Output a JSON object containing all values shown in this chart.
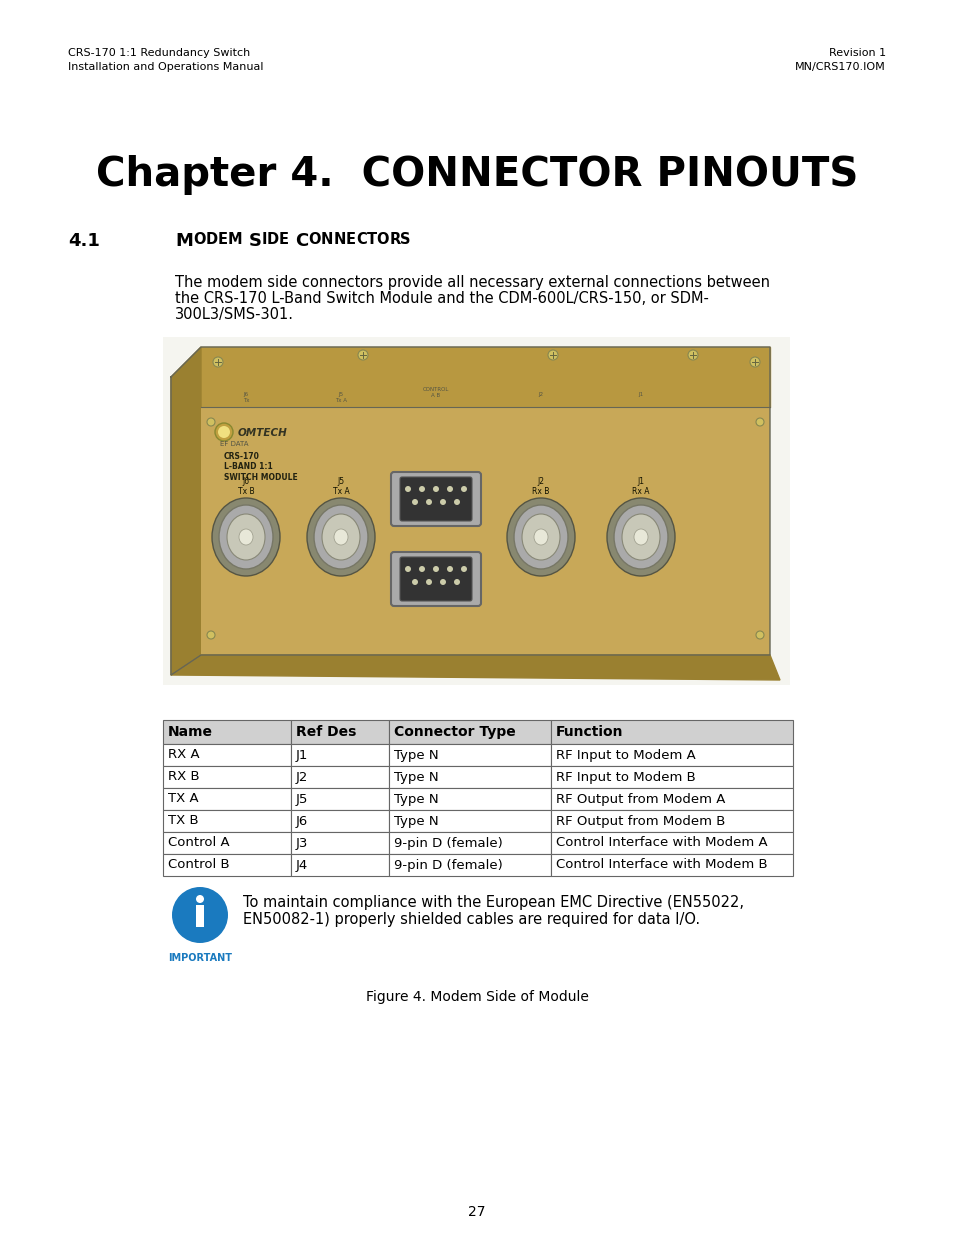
{
  "header_left_line1": "CRS-170 1:1 Redundancy Switch",
  "header_left_line2": "Installation and Operations Manual",
  "header_right_line1": "Revision 1",
  "header_right_line2": "MN/CRS170.IOM",
  "chapter_title": "Chapter 4.  CONNECTOR PINOUTS",
  "section_number": "4.1",
  "section_title": "Modem Side Connectors",
  "body_text_line1": "The modem side connectors provide all necessary external connections between",
  "body_text_line2": "the CRS-170 L-Band Switch Module and the CDM-600L/CRS-150, or SDM-",
  "body_text_line3": "300L3/SMS-301.",
  "table_headers": [
    "Name",
    "Ref Des",
    "Connector Type",
    "Function"
  ],
  "table_rows": [
    [
      "RX A",
      "J1",
      "Type N",
      "RF Input to Modem A"
    ],
    [
      "RX B",
      "J2",
      "Type N",
      "RF Input to Modem B"
    ],
    [
      "TX A",
      "J5",
      "Type N",
      "RF Output from Modem A"
    ],
    [
      "TX B",
      "J6",
      "Type N",
      "RF Output from Modem B"
    ],
    [
      "Control A",
      "J3",
      "9-pin D (female)",
      "Control Interface with Modem A"
    ],
    [
      "Control B",
      "J4",
      "9-pin D (female)",
      "Control Interface with Modem B"
    ]
  ],
  "important_text_line1": "To maintain compliance with the European EMC Directive (EN55022,",
  "important_text_line2": "EN50082-1) properly shielded cables are required for data I/O.",
  "important_label": "IMPORTANT",
  "figure_caption": "Figure 4. Modem Side of Module",
  "page_number": "27",
  "bg_color": "#ffffff",
  "header_color": "#000000",
  "table_header_bg": "#d0d0d0",
  "table_border_color": "#666666",
  "important_icon_color": "#1a7abf",
  "hw_body_color": "#c8a858",
  "hw_top_color": "#b89840",
  "hw_shadow_color": "#9a8030",
  "hw_front_color": "#d4b060"
}
